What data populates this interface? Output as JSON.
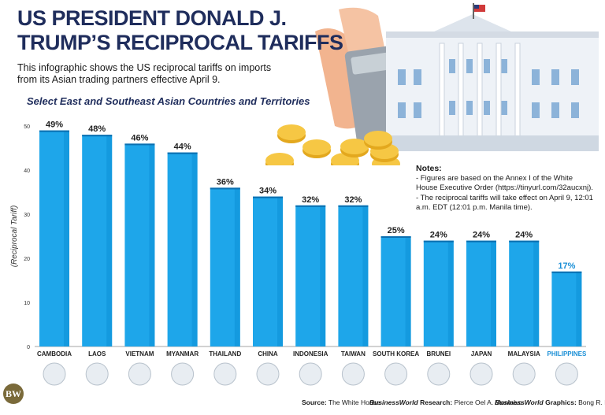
{
  "title": "US PRESIDENT DONALD J. TRUMP’S RECIPROCAL TARIFFS",
  "subtitle": "This infographic shows the US reciprocal tariffs on imports from its Asian trading partners effective April 9.",
  "section_title": "Select East and Southeast Asian Countries and Territories",
  "notes": {
    "heading": "Notes:",
    "items": [
      "- Figures are based on the Annex I of the White House Executive Order (https://tinyurl.com/32aucxnj).",
      "- The reciprocal tariffs will take effect on April 9, 12:01 a.m. EDT (12:01 p.m. Manila time)."
    ]
  },
  "footer": {
    "logo": "BW",
    "source_label": "Source:",
    "source_value": "The White House",
    "research_brand": "BusinessWorld",
    "research_label": "Research:",
    "research_value": "Pierce Oel A. Montalvo",
    "graphics_brand": "BusinessWorld",
    "graphics_label": "Graphics:",
    "graphics_value": "Bong R. Fortin"
  },
  "colors": {
    "bar": "#1ea6ea",
    "bar_dark": "#0c8fd6",
    "highlight_label": "#1a8fd6",
    "title": "#1f2d5c"
  },
  "chart_data": {
    "type": "bar",
    "title": "Select East and Southeast Asian Countries and Territories",
    "ylabel": "(Reciprocal Tariff)",
    "xlabel": "",
    "ylim": [
      0,
      50
    ],
    "yticks": [
      0,
      10,
      20,
      30,
      40,
      50
    ],
    "grid": false,
    "categories": [
      "CAMBODIA",
      "LAOS",
      "VIETNAM",
      "MYANMAR",
      "THAILAND",
      "CHINA",
      "INDONESIA",
      "TAIWAN",
      "SOUTH KOREA",
      "BRUNEI",
      "JAPAN",
      "MALAYSIA",
      "PHILIPPINES"
    ],
    "values": [
      49,
      48,
      46,
      44,
      36,
      34,
      32,
      32,
      25,
      24,
      24,
      24,
      17
    ],
    "value_suffix": "%",
    "highlight": "PHILIPPINES"
  }
}
